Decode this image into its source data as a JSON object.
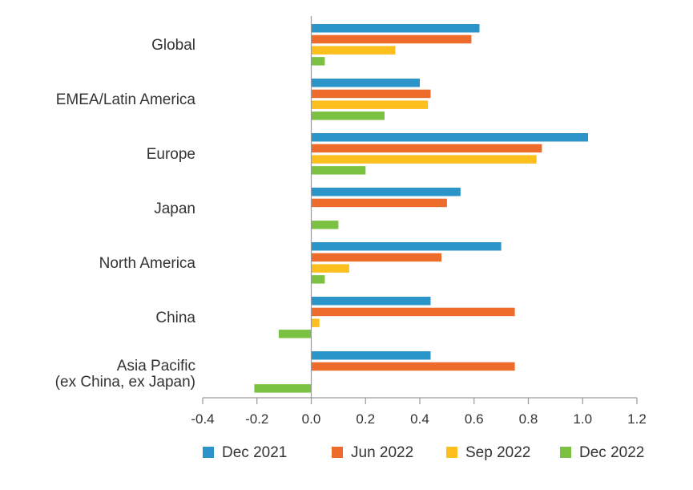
{
  "chart_data": {
    "type": "bar",
    "orientation": "horizontal",
    "categories": [
      "Global",
      "EMEA/Latin America",
      "Europe",
      "Japan",
      "North America",
      "China",
      "Asia Pacific\n(ex China, ex Japan)"
    ],
    "series": [
      {
        "name": "Dec 2021",
        "color": "#2b95c9",
        "values": [
          0.62,
          0.4,
          1.02,
          0.55,
          0.7,
          0.44,
          0.44
        ]
      },
      {
        "name": "Jun 2022",
        "color": "#ee6c2b",
        "values": [
          0.59,
          0.44,
          0.85,
          0.5,
          0.48,
          0.75,
          0.75
        ]
      },
      {
        "name": "Sep 2022",
        "color": "#fdbf1d",
        "values": [
          0.31,
          0.43,
          0.83,
          0,
          0.14,
          0.03,
          0
        ]
      },
      {
        "name": "Dec 2022",
        "color": "#7cc242",
        "values": [
          0.05,
          0.27,
          0.2,
          0.1,
          0.05,
          -0.12,
          -0.21
        ]
      }
    ],
    "xlim": [
      -0.4,
      1.2
    ],
    "xticks": [
      "-0.4",
      "-0.2",
      "0.0",
      "0.2",
      "0.4",
      "0.6",
      "0.8",
      "1.0",
      "1.2"
    ],
    "grid": false,
    "legend_position": "bottom"
  }
}
